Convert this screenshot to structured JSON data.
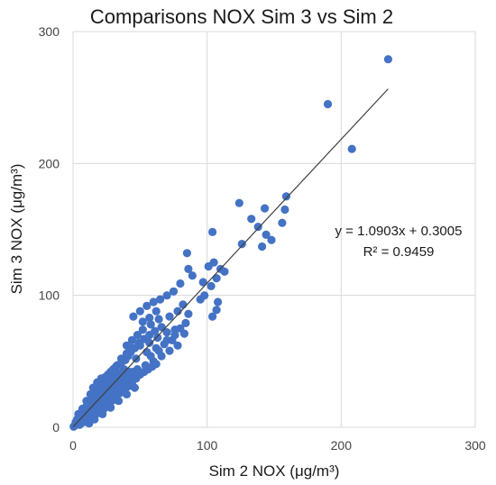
{
  "chart_data": {
    "type": "scatter",
    "title": "Comparisons NOX Sim 3 vs Sim 2",
    "xlabel": "Sim 2 NOX (μg/m³)",
    "ylabel": "Sim 3 NOX (μg/m³)",
    "xlim": [
      0,
      300
    ],
    "ylim": [
      0,
      300
    ],
    "xticks": [
      "0",
      "100",
      "200",
      "300"
    ],
    "yticks": [
      "0",
      "100",
      "200",
      "300"
    ],
    "grid": true,
    "marker_color": "#4472C4",
    "trendline": {
      "slope": 1.0903,
      "intercept": 0.3005,
      "x_range": [
        0,
        235
      ],
      "color": "#404040",
      "equation": "y = 1.0903x + 0.3005",
      "r_squared": "R² = 0.9459"
    },
    "points": [
      [
        235,
        279
      ],
      [
        190,
        245
      ],
      [
        208,
        211
      ],
      [
        159,
        175
      ],
      [
        124,
        170
      ],
      [
        158,
        165
      ],
      [
        143,
        166
      ],
      [
        138,
        152
      ],
      [
        133,
        158
      ],
      [
        156,
        155
      ],
      [
        144,
        146
      ],
      [
        148,
        142
      ],
      [
        141,
        137
      ],
      [
        126,
        139
      ],
      [
        104,
        148
      ],
      [
        105,
        125
      ],
      [
        101,
        122
      ],
      [
        110,
        120
      ],
      [
        113,
        118
      ],
      [
        107,
        113
      ],
      [
        103,
        107
      ],
      [
        98,
        100
      ],
      [
        95,
        97
      ],
      [
        108,
        95
      ],
      [
        107,
        89
      ],
      [
        104,
        84
      ],
      [
        97,
        110
      ],
      [
        89,
        115
      ],
      [
        85,
        132
      ],
      [
        86,
        120
      ],
      [
        80,
        109
      ],
      [
        75,
        103
      ],
      [
        70,
        100
      ],
      [
        65,
        97
      ],
      [
        60,
        95
      ],
      [
        55,
        92
      ],
      [
        50,
        88
      ],
      [
        45,
        84
      ],
      [
        52,
        80
      ],
      [
        58,
        78
      ],
      [
        64,
        82
      ],
      [
        72,
        84
      ],
      [
        78,
        88
      ],
      [
        82,
        93
      ],
      [
        86,
        86
      ],
      [
        84,
        79
      ],
      [
        80,
        75
      ],
      [
        76,
        70
      ],
      [
        70,
        72
      ],
      [
        63,
        68
      ],
      [
        57,
        64
      ],
      [
        50,
        62
      ],
      [
        44,
        60
      ],
      [
        40,
        56
      ],
      [
        36,
        52
      ],
      [
        32,
        46
      ],
      [
        47,
        52
      ],
      [
        55,
        57
      ],
      [
        62,
        60
      ],
      [
        68,
        63
      ],
      [
        74,
        66
      ],
      [
        83,
        71
      ],
      [
        78,
        62
      ],
      [
        72,
        58
      ],
      [
        66,
        54
      ],
      [
        60,
        50
      ],
      [
        54,
        47
      ],
      [
        48,
        44
      ],
      [
        42,
        42
      ],
      [
        38,
        40
      ],
      [
        34,
        37
      ],
      [
        30,
        34
      ],
      [
        27,
        31
      ],
      [
        24,
        28
      ],
      [
        22,
        25
      ],
      [
        20,
        23
      ],
      [
        18,
        21
      ],
      [
        16,
        19
      ],
      [
        14,
        17
      ],
      [
        12,
        15
      ],
      [
        10,
        13
      ],
      [
        9,
        11
      ],
      [
        8,
        9
      ],
      [
        7,
        8
      ],
      [
        6,
        7
      ],
      [
        5,
        5
      ],
      [
        4,
        4
      ],
      [
        3,
        3
      ],
      [
        2,
        2
      ],
      [
        1,
        1
      ],
      [
        0.5,
        0.5
      ],
      [
        2,
        4
      ],
      [
        4,
        7
      ],
      [
        6,
        10
      ],
      [
        8,
        13
      ],
      [
        10,
        16
      ],
      [
        12,
        19
      ],
      [
        14,
        22
      ],
      [
        16,
        26
      ],
      [
        18,
        29
      ],
      [
        20,
        32
      ],
      [
        22,
        35
      ],
      [
        24,
        38
      ],
      [
        26,
        40
      ],
      [
        28,
        42
      ],
      [
        30,
        44
      ],
      [
        33,
        47
      ],
      [
        36,
        49
      ],
      [
        39,
        51
      ],
      [
        41,
        54
      ],
      [
        43,
        57
      ],
      [
        46,
        60
      ],
      [
        49,
        64
      ],
      [
        53,
        67
      ],
      [
        57,
        70
      ],
      [
        61,
        73
      ],
      [
        5,
        2
      ],
      [
        8,
        4
      ],
      [
        11,
        6
      ],
      [
        14,
        8
      ],
      [
        17,
        10
      ],
      [
        20,
        12
      ],
      [
        23,
        14
      ],
      [
        26,
        17
      ],
      [
        29,
        20
      ],
      [
        32,
        23
      ],
      [
        35,
        26
      ],
      [
        38,
        29
      ],
      [
        41,
        31
      ],
      [
        44,
        34
      ],
      [
        47,
        37
      ],
      [
        50,
        40
      ],
      [
        53,
        42
      ],
      [
        56,
        44
      ],
      [
        59,
        46
      ],
      [
        62,
        48
      ],
      [
        46,
        30
      ],
      [
        40,
        25
      ],
      [
        34,
        20
      ],
      [
        28,
        15
      ],
      [
        22,
        10
      ],
      [
        16,
        6
      ],
      [
        12,
        3
      ],
      [
        9,
        12
      ],
      [
        11,
        10
      ],
      [
        13,
        12
      ],
      [
        15,
        14
      ],
      [
        17,
        15
      ],
      [
        19,
        17
      ],
      [
        21,
        19
      ],
      [
        23,
        20
      ],
      [
        25,
        22
      ],
      [
        27,
        24
      ],
      [
        29,
        26
      ],
      [
        31,
        28
      ],
      [
        33,
        30
      ],
      [
        35,
        32
      ],
      [
        37,
        34
      ],
      [
        39,
        36
      ],
      [
        41,
        38
      ],
      [
        43,
        40
      ],
      [
        45,
        42
      ],
      [
        15,
        30
      ],
      [
        18,
        34
      ],
      [
        21,
        37
      ],
      [
        24,
        33
      ],
      [
        27,
        36
      ],
      [
        30,
        39
      ],
      [
        13,
        25
      ],
      [
        19,
        27
      ],
      [
        25,
        29
      ],
      [
        31,
        31
      ],
      [
        10,
        20
      ],
      [
        7,
        14
      ],
      [
        4,
        10
      ],
      [
        3,
        6
      ],
      [
        6,
        3
      ],
      [
        9,
        6
      ],
      [
        12,
        8
      ],
      [
        15,
        9
      ],
      [
        18,
        11
      ],
      [
        21,
        13
      ],
      [
        24,
        16
      ],
      [
        27,
        18
      ],
      [
        30,
        21
      ],
      [
        14,
        13
      ],
      [
        16,
        16
      ],
      [
        18,
        18
      ],
      [
        20,
        20
      ],
      [
        22,
        22
      ],
      [
        24,
        24
      ],
      [
        26,
        26
      ],
      [
        28,
        28
      ],
      [
        30,
        30
      ],
      [
        32,
        32
      ],
      [
        11,
        17
      ],
      [
        13,
        20
      ],
      [
        17,
        24
      ],
      [
        19,
        30
      ],
      [
        23,
        27
      ],
      [
        25,
        31
      ],
      [
        28,
        35
      ],
      [
        32,
        38
      ],
      [
        35,
        41
      ],
      [
        38,
        44
      ],
      [
        58,
        54
      ],
      [
        64,
        58
      ],
      [
        70,
        66
      ],
      [
        76,
        74
      ],
      [
        66,
        76
      ],
      [
        62,
        88
      ],
      [
        57,
        83
      ],
      [
        52,
        74
      ],
      [
        48,
        70
      ],
      [
        44,
        66
      ],
      [
        40,
        62
      ]
    ]
  }
}
